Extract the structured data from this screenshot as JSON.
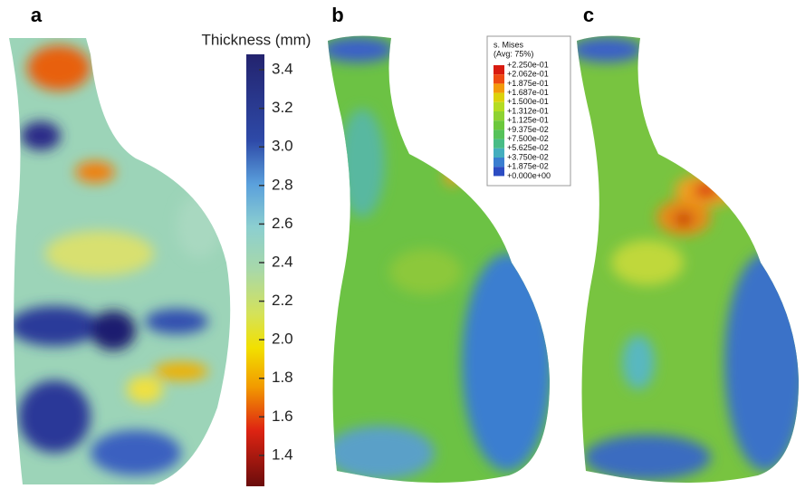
{
  "panels": {
    "a": "a",
    "b": "b",
    "c": "c"
  },
  "colorbar": {
    "title": "Thickness (mm)",
    "range": [
      1.24,
      3.48
    ],
    "ticks": [
      3.4,
      3.2,
      {
        "value": 3,
        "label": "3.0"
      },
      2.8,
      2.6,
      2.4,
      2.2,
      {
        "value": 2,
        "label": "2.0"
      },
      1.8,
      1.6,
      1.4
    ]
  },
  "legend": {
    "title": "s. Mises",
    "subtitle": "(Avg: 75%)",
    "labels": [
      "+2.250e-01",
      "+2.062e-01",
      "+1.875e-01",
      "+1.687e-01",
      "+1.500e-01",
      "+1.312e-01",
      "+1.125e-01",
      "+9.375e-02",
      "+7.500e-02",
      "+5.625e-02",
      "+3.750e-02",
      "+1.875e-02",
      "+0.000e+00"
    ],
    "colors": [
      "#d81b10",
      "#ee4a12",
      "#f39a0a",
      "#dcd20a",
      "#b4dc22",
      "#8ed232",
      "#6cc83c",
      "#56c25a",
      "#48bc86",
      "#44aebe",
      "#3a7ed0",
      "#2c4cc2"
    ]
  }
}
